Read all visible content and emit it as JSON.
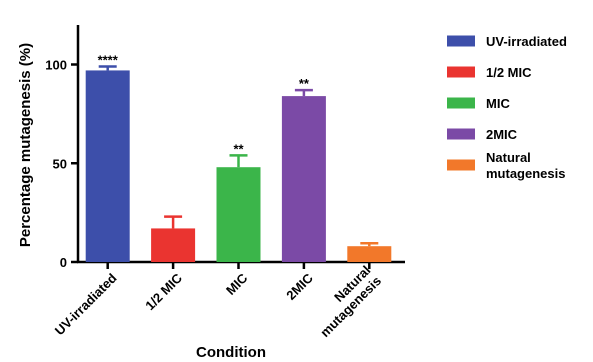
{
  "chart_data": {
    "type": "bar",
    "xlabel": "Condition",
    "ylabel": "Percentage mutagenesis (%)",
    "ylim": [
      0,
      120
    ],
    "yticks": [
      0,
      50,
      100
    ],
    "categories": [
      "UV-irradiated",
      "1/2 MIC",
      "MIC",
      "2MIC",
      "Natural mutagenesis"
    ],
    "x_tick_lines": [
      [
        "UV-irradiated"
      ],
      [
        "1/2 MIC"
      ],
      [
        "MIC"
      ],
      [
        "2MIC"
      ],
      [
        "Natural",
        "mutagenesis"
      ]
    ],
    "values": [
      97,
      17,
      48,
      84,
      8
    ],
    "errors": [
      2,
      6,
      6,
      3,
      1.5
    ],
    "significance": [
      "****",
      "",
      "**",
      "**",
      ""
    ],
    "colors": [
      "#3d4faa",
      "#ea3430",
      "#3bb54a",
      "#7b4aa6",
      "#f2782a"
    ],
    "legend": {
      "position": "right",
      "entries": [
        {
          "lines": [
            "UV-irradiated"
          ]
        },
        {
          "lines": [
            "1/2 MIC"
          ]
        },
        {
          "lines": [
            "MIC"
          ]
        },
        {
          "lines": [
            "2MIC"
          ]
        },
        {
          "lines": [
            "Natural",
            "mutagenesis"
          ]
        }
      ]
    },
    "grid": false
  }
}
